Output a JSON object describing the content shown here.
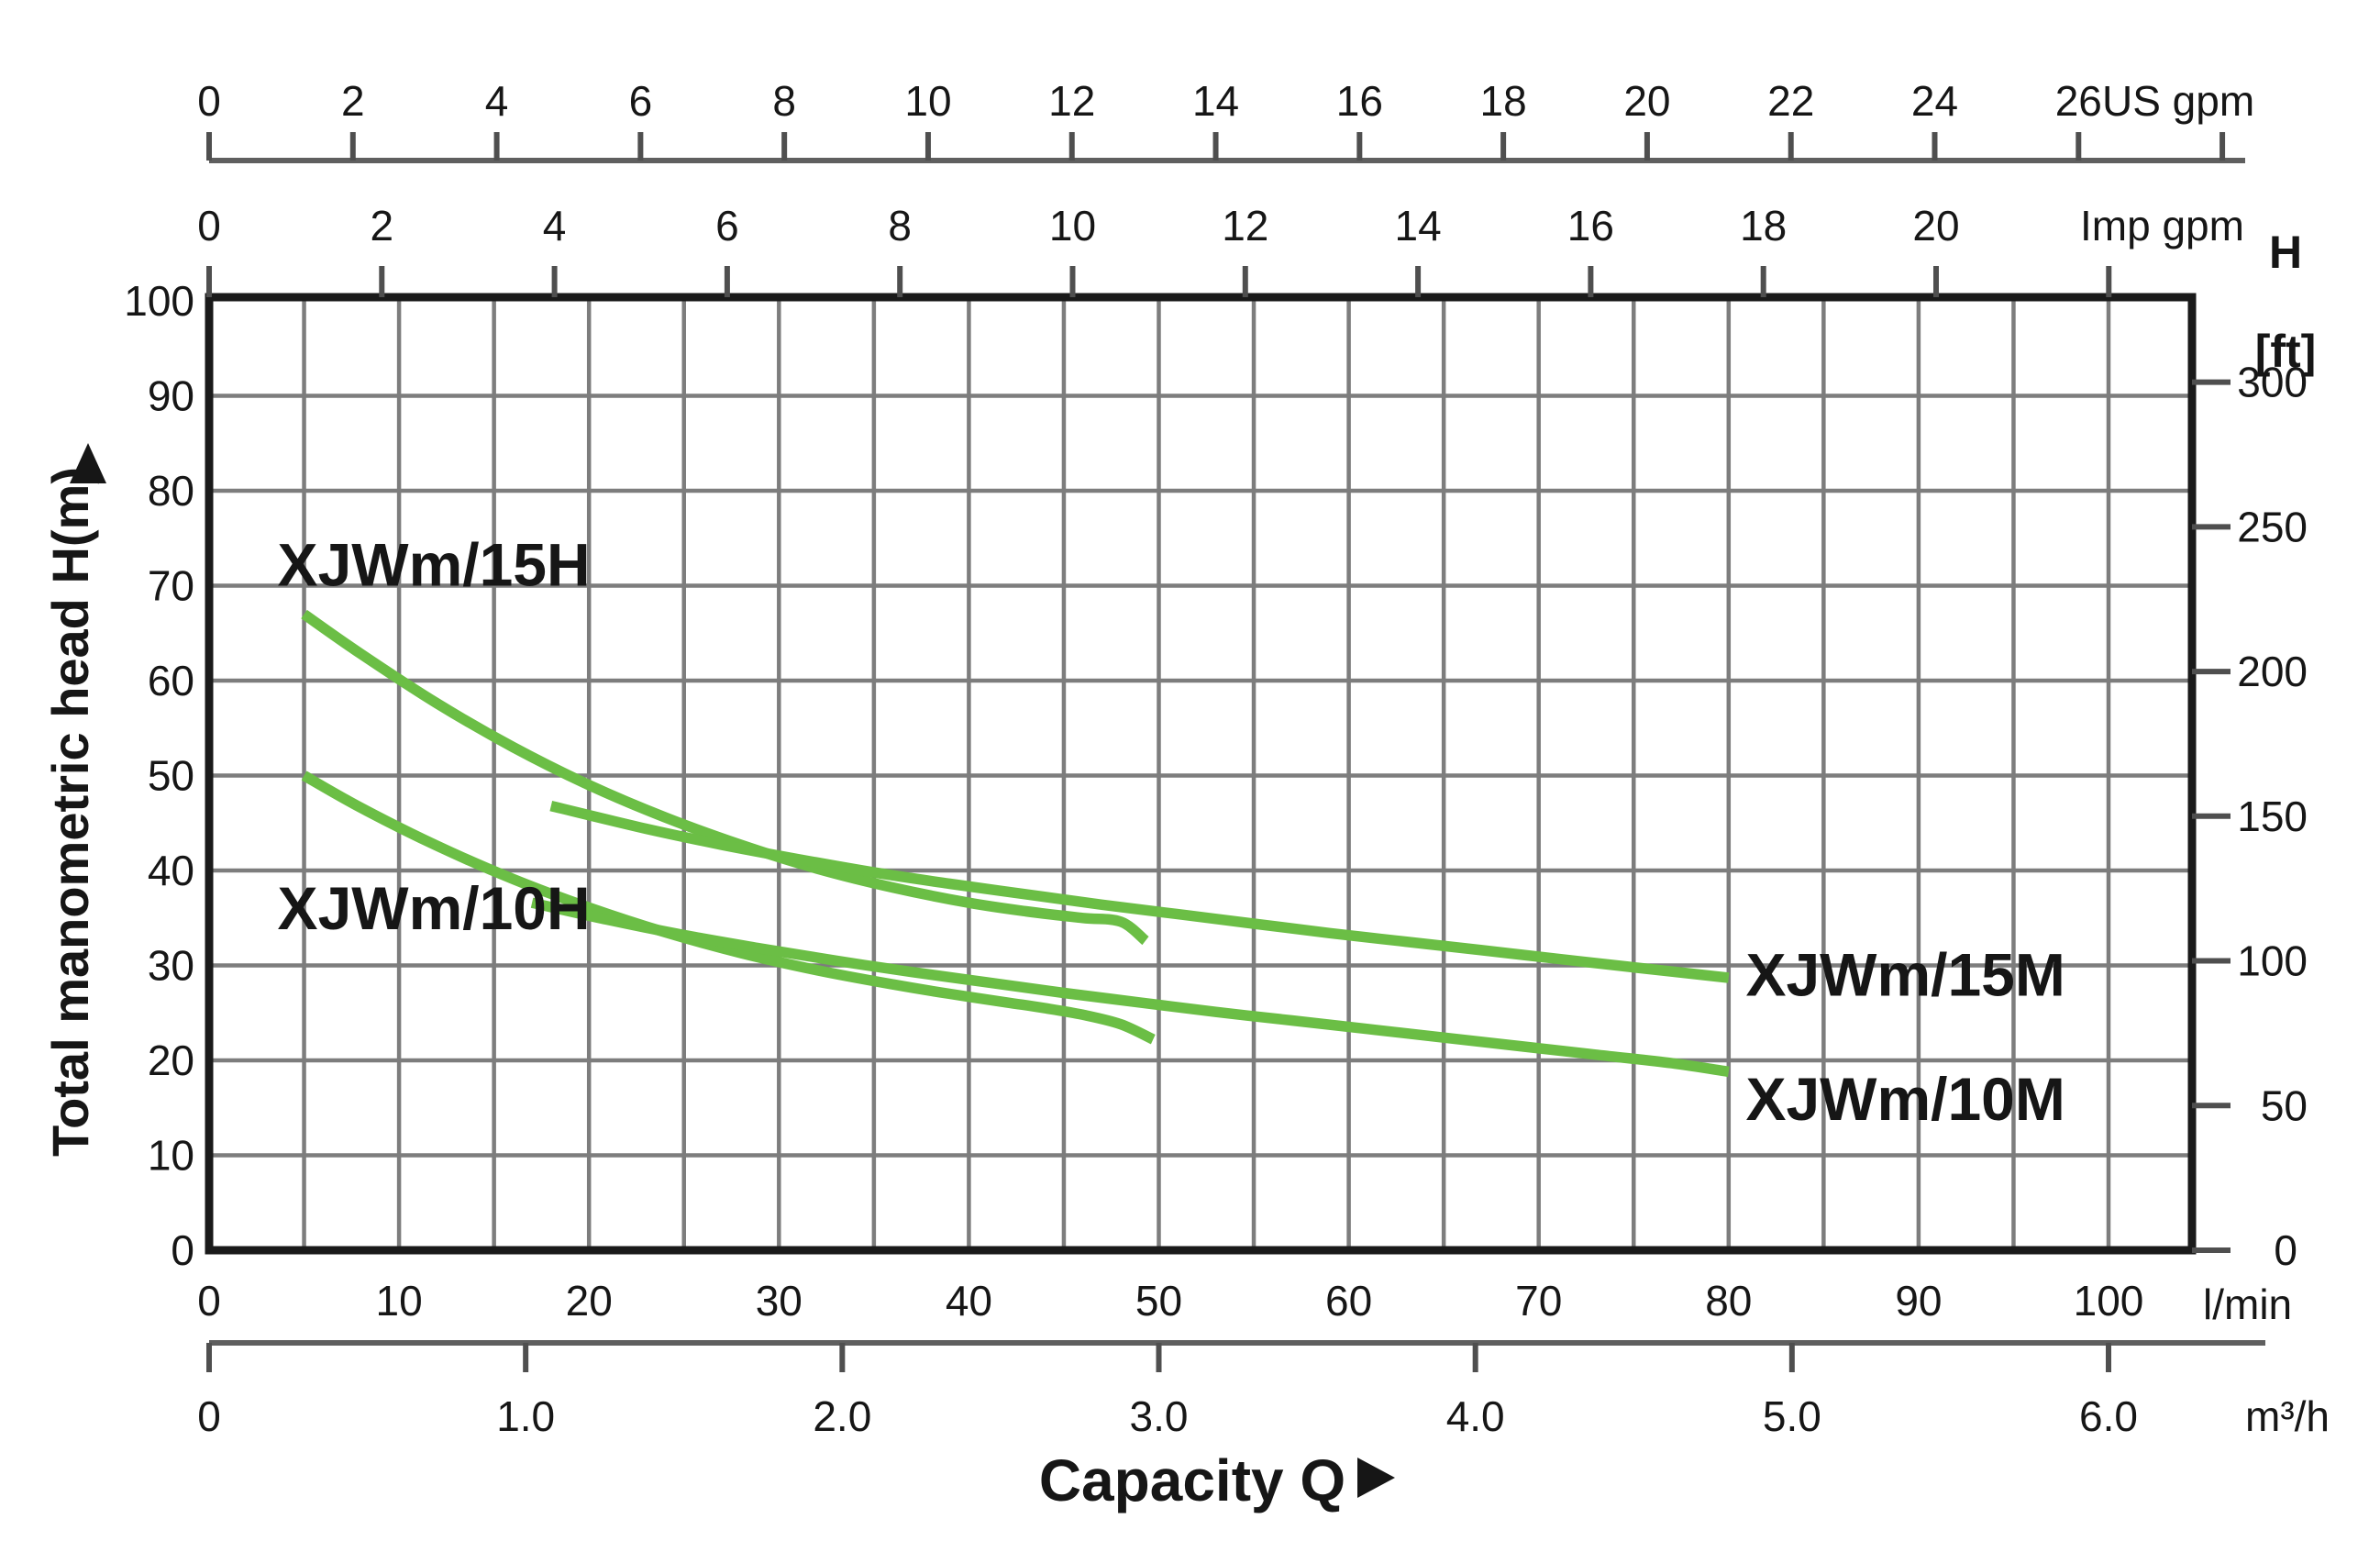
{
  "chart_data": {
    "type": "line",
    "title": "",
    "xlabel": "Capacity Q",
    "xlabel_arrow": "►",
    "ylabel": "Total manometric head H(m)",
    "ylabel_arrow": "▲",
    "x_axis_lmin": {
      "unit": "l/min",
      "min": 0,
      "max": 104.5,
      "tick_values": [
        0,
        10,
        20,
        30,
        40,
        50,
        60,
        70,
        80,
        90,
        100
      ],
      "tick_labels": [
        "0",
        "10",
        "20",
        "30",
        "40",
        "50",
        "60",
        "70",
        "80",
        "90",
        "100"
      ],
      "minor_grid_step": 5,
      "grid": true
    },
    "x_axis_m3h": {
      "unit": "m³/h",
      "lmin_per_unit": 16.6667,
      "tick_values": [
        0,
        1,
        2,
        3,
        4,
        5,
        6
      ],
      "tick_labels": [
        "0",
        "1.0",
        "2.0",
        "3.0",
        "4.0",
        "5.0",
        "6.0"
      ]
    },
    "x_axis_usgpm": {
      "unit": "US gpm",
      "lmin_per_unit": 3.78541,
      "tick_values": [
        0,
        2,
        4,
        6,
        8,
        10,
        12,
        14,
        16,
        18,
        20,
        22,
        24,
        26
      ],
      "tick_labels": [
        "0",
        "2",
        "4",
        "6",
        "8",
        "10",
        "12",
        "14",
        "16",
        "18",
        "20",
        "22",
        "24",
        "26"
      ],
      "extra_unlabeled_ticks": [
        28
      ]
    },
    "x_axis_impgpm": {
      "unit": "Imp gpm",
      "lmin_per_unit": 4.54609,
      "tick_values": [
        0,
        2,
        4,
        6,
        8,
        10,
        12,
        14,
        16,
        18,
        20
      ],
      "tick_labels": [
        "0",
        "2",
        "4",
        "6",
        "8",
        "10",
        "12",
        "14",
        "16",
        "18",
        "20"
      ],
      "extra_unlabeled_ticks": [
        22
      ]
    },
    "y_axis_m": {
      "min": 0,
      "max": 100,
      "tick_values": [
        0,
        10,
        20,
        30,
        40,
        50,
        60,
        70,
        80,
        90,
        100
      ],
      "tick_labels": [
        "0",
        "10",
        "20",
        "30",
        "40",
        "50",
        "60",
        "70",
        "80",
        "90",
        "100"
      ],
      "grid_step": 10,
      "grid": true
    },
    "y_axis_ft": {
      "title_line1": "H",
      "title_line2": "[ft]",
      "m_per_ft": 0.3048,
      "tick_values": [
        50,
        100,
        150,
        200,
        250,
        300
      ],
      "tick_labels": [
        "50",
        "100",
        "150",
        "200",
        "250",
        "300"
      ],
      "zero_tick_value": 0,
      "zero_tick_label": "0"
    },
    "series": [
      {
        "name": "XJWm/15H",
        "points": [
          [
            5,
            67
          ],
          [
            8,
            62.8
          ],
          [
            12,
            57.6
          ],
          [
            16,
            53.0
          ],
          [
            20,
            49.0
          ],
          [
            24,
            45.6
          ],
          [
            28,
            42.7
          ],
          [
            32,
            40.2
          ],
          [
            36,
            38.2
          ],
          [
            40,
            36.6
          ],
          [
            43,
            35.7
          ],
          [
            46,
            35.0
          ],
          [
            48,
            34.6
          ],
          [
            49.3,
            32.6
          ]
        ]
      },
      {
        "name": "XJWm/15M",
        "points": [
          [
            18,
            46.8
          ],
          [
            23,
            44.4
          ],
          [
            27,
            42.7
          ],
          [
            31,
            41.2
          ],
          [
            35,
            39.8
          ],
          [
            39,
            38.6
          ],
          [
            43,
            37.5
          ],
          [
            47,
            36.4
          ],
          [
            51,
            35.4
          ],
          [
            55,
            34.4
          ],
          [
            59,
            33.4
          ],
          [
            63,
            32.5
          ],
          [
            67,
            31.6
          ],
          [
            71,
            30.7
          ],
          [
            75,
            29.8
          ],
          [
            80,
            28.7
          ]
        ]
      },
      {
        "name": "XJWm/10H",
        "points": [
          [
            5,
            50
          ],
          [
            8,
            46.6
          ],
          [
            12,
            42.6
          ],
          [
            16,
            39.1
          ],
          [
            20,
            36.1
          ],
          [
            24,
            33.5
          ],
          [
            28,
            31.3
          ],
          [
            32,
            29.5
          ],
          [
            36,
            28.0
          ],
          [
            39,
            27.0
          ],
          [
            42,
            26.1
          ],
          [
            44,
            25.5
          ],
          [
            46,
            24.8
          ],
          [
            48,
            23.8
          ],
          [
            49.7,
            22.2
          ]
        ]
      },
      {
        "name": "XJWm/10M",
        "points": [
          [
            17,
            36.6
          ],
          [
            21,
            34.8
          ],
          [
            25,
            33.2
          ],
          [
            29,
            31.8
          ],
          [
            33,
            30.5
          ],
          [
            37,
            29.3
          ],
          [
            41,
            28.2
          ],
          [
            45,
            27.1
          ],
          [
            49,
            26.1
          ],
          [
            53,
            25.1
          ],
          [
            57,
            24.2
          ],
          [
            61,
            23.3
          ],
          [
            65,
            22.4
          ],
          [
            69,
            21.5
          ],
          [
            73,
            20.6
          ],
          [
            77,
            19.7
          ],
          [
            80,
            18.8
          ]
        ]
      }
    ],
    "curve_labels": [
      {
        "text": "XJWm/15H",
        "q": 3.6,
        "h": 70.0,
        "anchor": "start"
      },
      {
        "text": "XJWm/10H",
        "q": 3.6,
        "h": 33.8,
        "anchor": "start"
      },
      {
        "text": "XJWm/15M",
        "q": 80.9,
        "h": 26.8,
        "anchor": "start"
      },
      {
        "text": "XJWm/10M",
        "q": 80.9,
        "h": 13.7,
        "anchor": "start"
      }
    ],
    "colors": {
      "curve": "#6bbe45",
      "grid": "#7d7d7d",
      "frame": "#1a1a1a",
      "secondary_axis": "#5f5f5f",
      "tick": "#4f4f4f",
      "text": "#161616"
    },
    "legend_position": "none"
  }
}
